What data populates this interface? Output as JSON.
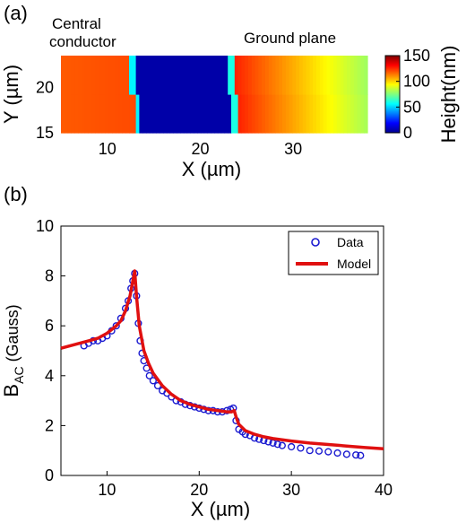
{
  "chart_data": [
    {
      "panel_label": "(a)",
      "type": "heatmap",
      "annotations": [
        "Central",
        "conductor",
        "Ground plane"
      ],
      "xlabel": "X (µm)",
      "ylabel": "Y (µm)",
      "x_ticks": [
        10,
        20,
        30
      ],
      "y_ticks": [
        15,
        20
      ],
      "xlim": [
        5,
        38
      ],
      "ylim": [
        15,
        23.5
      ],
      "colorbar": {
        "label": "Height(nm)",
        "range": [
          0,
          150
        ],
        "ticks": [
          0,
          50,
          100,
          150
        ],
        "colormap": "jet"
      },
      "regions": [
        {
          "x_from": 5,
          "x_to": 13,
          "height": 115
        },
        {
          "x_from": 13,
          "x_to": 24,
          "height": 5
        },
        {
          "x_from": 24,
          "x_to": 38,
          "height": "120 to 75"
        }
      ]
    },
    {
      "panel_label": "(b)",
      "type": "scatter",
      "xlabel": "X (µm)",
      "ylabel_main": "B",
      "ylabel_sub": "AC",
      "ylabel_rest": " (Gauss)",
      "xlim": [
        5,
        40
      ],
      "ylim": [
        0,
        10
      ],
      "x_ticks": [
        10,
        20,
        30,
        40
      ],
      "y_ticks": [
        0,
        2,
        4,
        6,
        8,
        10
      ],
      "legend_position": "top-right",
      "series": [
        {
          "name": "Data",
          "style": "markers",
          "color": "#1a1ad0",
          "x": [
            7.5,
            8,
            8.5,
            9,
            9.5,
            10,
            10.5,
            11,
            11.5,
            12,
            12.3,
            12.6,
            12.8,
            13,
            13.2,
            13.4,
            13.6,
            13.8,
            14,
            14.3,
            14.6,
            15,
            15.5,
            16,
            16.5,
            17,
            17.5,
            18,
            18.5,
            19,
            19.5,
            20,
            20.5,
            21,
            21.5,
            22,
            22.5,
            23,
            23.4,
            23.7,
            24,
            24.3,
            24.7,
            25,
            25.5,
            26,
            26.5,
            27,
            27.5,
            28,
            28.5,
            29,
            30,
            31,
            32,
            33,
            34,
            35,
            36,
            37,
            37.5
          ],
          "y": [
            5.2,
            5.3,
            5.4,
            5.4,
            5.5,
            5.6,
            5.8,
            6.0,
            6.3,
            6.7,
            7.0,
            7.5,
            7.8,
            8.1,
            7.2,
            6.1,
            5.4,
            4.9,
            4.6,
            4.3,
            4.0,
            3.8,
            3.6,
            3.4,
            3.3,
            3.15,
            3.0,
            2.95,
            2.85,
            2.8,
            2.75,
            2.7,
            2.65,
            2.6,
            2.6,
            2.55,
            2.55,
            2.6,
            2.65,
            2.7,
            2.2,
            1.85,
            1.75,
            1.65,
            1.6,
            1.5,
            1.45,
            1.4,
            1.35,
            1.3,
            1.25,
            1.2,
            1.15,
            1.1,
            1.0,
            0.98,
            0.95,
            0.9,
            0.85,
            0.82,
            0.8
          ]
        },
        {
          "name": "Model",
          "style": "line",
          "color": "#e01010",
          "x": [
            5,
            6,
            7,
            8,
            9,
            10,
            11,
            11.5,
            12,
            12.5,
            13,
            13.2,
            13.5,
            14,
            14.5,
            15,
            16,
            17,
            18,
            19,
            20,
            21,
            22,
            23,
            23.5,
            23.8,
            24,
            24.3,
            25,
            26,
            27,
            28,
            30,
            32,
            34,
            36,
            38,
            40
          ],
          "y": [
            5.1,
            5.2,
            5.3,
            5.4,
            5.5,
            5.7,
            6.0,
            6.2,
            6.6,
            7.2,
            8.2,
            7.2,
            6.0,
            5.0,
            4.5,
            4.1,
            3.6,
            3.25,
            3.0,
            2.85,
            2.75,
            2.65,
            2.6,
            2.55,
            2.55,
            2.6,
            2.35,
            2.05,
            1.8,
            1.65,
            1.55,
            1.48,
            1.38,
            1.3,
            1.24,
            1.18,
            1.12,
            1.07
          ]
        }
      ]
    }
  ]
}
